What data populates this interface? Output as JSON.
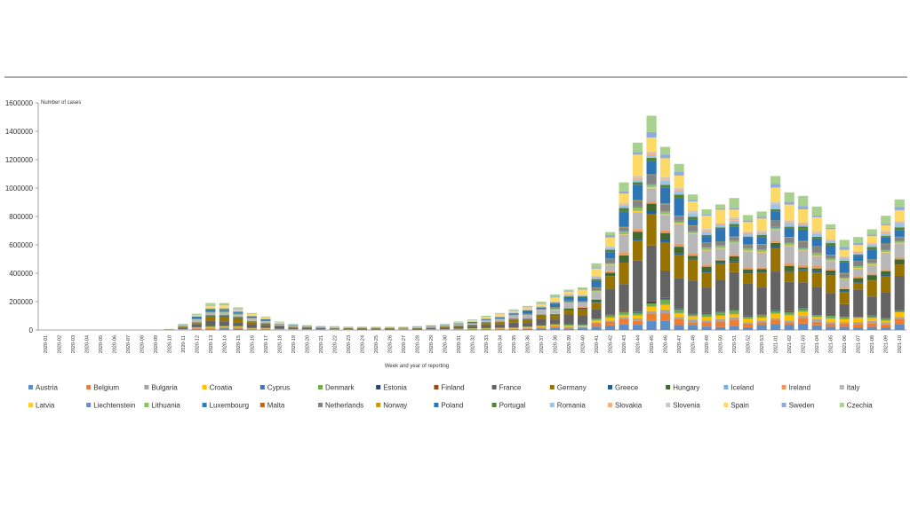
{
  "chart_data": {
    "type": "bar",
    "stacked": true,
    "title": "",
    "ylabel": "Number of cases",
    "xlabel": "Week and year of reporting",
    "ylim": [
      0,
      1600000
    ],
    "yticks": [
      "0",
      "200000",
      "400000",
      "600000",
      "800000",
      "1000000",
      "1200000",
      "1400000",
      "1600000"
    ],
    "ytick_values": [
      0,
      200000,
      400000,
      600000,
      800000,
      1000000,
      1200000,
      1400000,
      1600000
    ],
    "legend_position": "bottom",
    "categories": [
      "2020-01",
      "2020-02",
      "2020-03",
      "2020-04",
      "2020-05",
      "2020-06",
      "2020-07",
      "2020-08",
      "2020-09",
      "2020-10",
      "2020-11",
      "2020-12",
      "2020-13",
      "2020-14",
      "2020-15",
      "2020-16",
      "2020-17",
      "2020-18",
      "2020-19",
      "2020-20",
      "2020-21",
      "2020-22",
      "2020-23",
      "2020-24",
      "2020-25",
      "2020-26",
      "2020-27",
      "2020-28",
      "2020-29",
      "2020-30",
      "2020-31",
      "2020-32",
      "2020-33",
      "2020-34",
      "2020-35",
      "2020-36",
      "2020-37",
      "2020-38",
      "2020-39",
      "2020-40",
      "2020-41",
      "2020-42",
      "2020-43",
      "2020-44",
      "2020-45",
      "2020-46",
      "2020-47",
      "2020-48",
      "2020-49",
      "2020-50",
      "2020-51",
      "2020-52",
      "2020-53",
      "2021-01",
      "2021-02",
      "2021-03",
      "2021-04",
      "2021-05",
      "2021-06",
      "2021-07",
      "2021-08",
      "2021-09",
      "2021-10"
    ],
    "totals": [
      0,
      0,
      0,
      0,
      0,
      0,
      0,
      0,
      2000,
      8000,
      45000,
      115000,
      190000,
      190000,
      160000,
      120000,
      95000,
      60000,
      45000,
      35000,
      30000,
      28000,
      25000,
      25000,
      25000,
      25000,
      25000,
      28000,
      35000,
      45000,
      60000,
      75000,
      100000,
      120000,
      145000,
      170000,
      200000,
      250000,
      285000,
      300000,
      470000,
      690000,
      1040000,
      1320000,
      1510000,
      1290000,
      1170000,
      955000,
      850000,
      885000,
      930000,
      810000,
      835000,
      1085000,
      970000,
      945000,
      870000,
      745000,
      635000,
      655000,
      710000,
      805000,
      920000
    ],
    "series_names": [
      "Austria",
      "Belgium",
      "Bulgaria",
      "Croatia",
      "Cyprus",
      "Denmark",
      "Estonia",
      "Finland",
      "France",
      "Germany",
      "Greece",
      "Hungary",
      "Iceland",
      "Ireland",
      "Italy",
      "Latvia",
      "Liechtenstein",
      "Lithuania",
      "Luxembourg",
      "Malta",
      "Netherlands",
      "Norway",
      "Poland",
      "Portugal",
      "Romania",
      "Slovakia",
      "Slovenia",
      "Spain",
      "Sweden",
      "Czechia"
    ],
    "series_colors": [
      "#5b8fc9",
      "#ed7d31",
      "#a5a5a5",
      "#ffc000",
      "#4472c4",
      "#70ad47",
      "#264478",
      "#9e480e",
      "#636363",
      "#997300",
      "#255e91",
      "#43682b",
      "#7cafdd",
      "#f1975a",
      "#b7b7b7",
      "#ffcd33",
      "#698ed0",
      "#8cc168",
      "#327dc2",
      "#d26012",
      "#848484",
      "#cc9a00",
      "#2e75b6",
      "#548235",
      "#9dc3e6",
      "#f4b183",
      "#c9c9c9",
      "#ffd966",
      "#8faadc",
      "#a9d18e"
    ],
    "shares": [
      0.04,
      0.035,
      0.015,
      0.03,
      0.002,
      0.02,
      0.005,
      0.003,
      0.22,
      0.12,
      0.01,
      0.03,
      0.001,
      0.015,
      0.12,
      0.005,
      0.0005,
      0.015,
      0.003,
      0.001,
      0.04,
      0.003,
      0.08,
      0.02,
      0.025,
      0.01,
      0.01,
      0.09,
      0.02,
      0.06
    ]
  }
}
